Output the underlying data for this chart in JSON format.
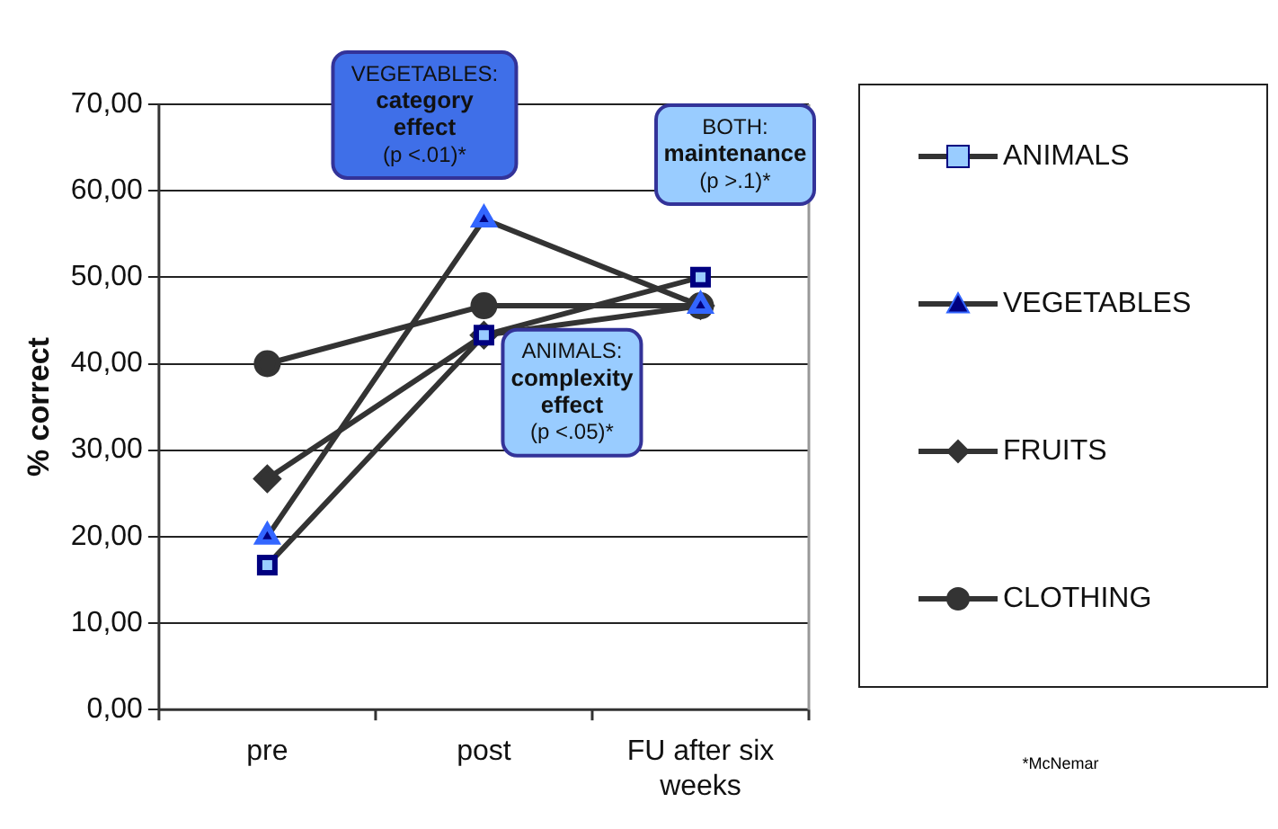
{
  "chart_data": {
    "type": "line",
    "ylabel": "% correct",
    "categories": [
      "pre",
      "post",
      "FU after six weeks"
    ],
    "series": [
      {
        "name": "ANIMALS",
        "color": "#99ccff",
        "marker": "square",
        "values": [
          16.7,
          43.3,
          50
        ]
      },
      {
        "name": "VEGETABLES",
        "color": "#000080",
        "marker": "triangle",
        "values": [
          20,
          56.7,
          46.7
        ]
      },
      {
        "name": "FRUITS",
        "color": "#333333",
        "marker": "diamond",
        "values": [
          26.7,
          43.3,
          46.7
        ]
      },
      {
        "name": "CLOTHING",
        "color": "#333333",
        "marker": "circle",
        "values": [
          40,
          46.7,
          46.7
        ]
      }
    ],
    "ylim": [
      0,
      70
    ],
    "yticks": [
      {
        "value": 0,
        "label": "0,00"
      },
      {
        "value": 10,
        "label": "10,00"
      },
      {
        "value": 20,
        "label": "20,00"
      },
      {
        "value": 30,
        "label": "30,00"
      },
      {
        "value": 40,
        "label": "40,00"
      },
      {
        "value": 50,
        "label": "50,00"
      },
      {
        "value": 60,
        "label": "60,00"
      },
      {
        "value": 70,
        "label": "70,00"
      }
    ],
    "grid": "y",
    "legend": "right",
    "line_style": "solid",
    "annotations": [
      {
        "text": "VEGETABLES:\ncategory\neffect\n(p <.01)*",
        "x": "post",
        "y": 56.7
      },
      {
        "text": "ANIMALS:\ncomplexity\neffect\n(p <.05)*",
        "x": "post",
        "y": 43.3
      },
      "BOTH:\nmaintenance\n(p >.1)*",
      "*McNemar"
    ]
  }
}
